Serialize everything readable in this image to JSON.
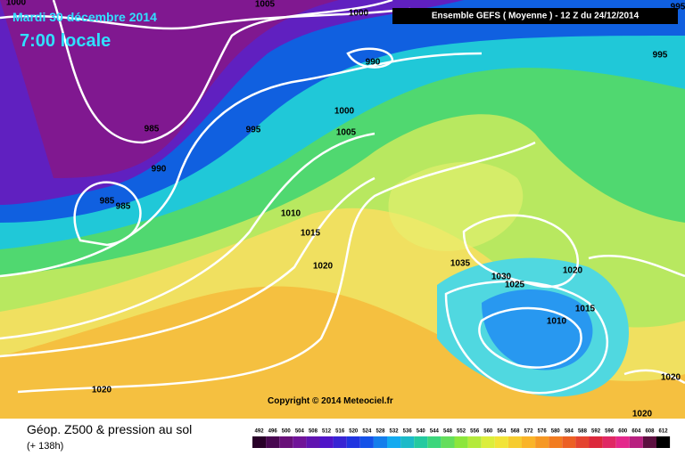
{
  "header": {
    "date": "Mardi 30 décembre 2014",
    "time": "7:00 locale",
    "run": "Ensemble GEFS  ( Moyenne )  -  12 Z du 24/12/2014"
  },
  "isobar_labels": [
    1005,
    1000,
    1000,
    990,
    995,
    985,
    990,
    985,
    985,
    1000,
    1005,
    995,
    1010,
    1015,
    1020,
    1035,
    1030,
    1025,
    1020,
    1015,
    1010,
    1020,
    1020,
    1020,
    995
  ],
  "copyright": "Copyright © 2014 Meteociel.fr",
  "footer": {
    "title": "Géop. Z500 & pression au sol",
    "lead": "(+ 138h)"
  },
  "scale": [
    492,
    496,
    500,
    504,
    508,
    512,
    516,
    520,
    524,
    528,
    532,
    536,
    540,
    544,
    548,
    552,
    556,
    560,
    564,
    568,
    572,
    576,
    580,
    584,
    588,
    592,
    596,
    600,
    604,
    608,
    612
  ]
}
